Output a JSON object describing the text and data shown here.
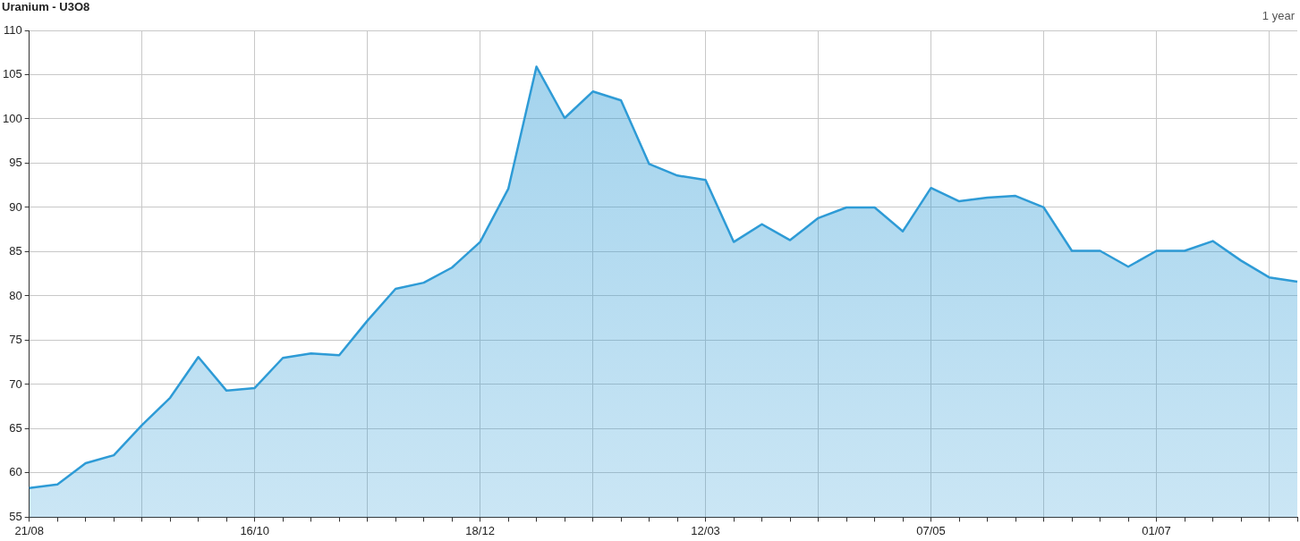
{
  "chart_data": {
    "type": "area",
    "title": "Uranium - U3O8",
    "annotations": [
      "1 year"
    ],
    "categories": [
      "21/08",
      null,
      null,
      null,
      null,
      null,
      null,
      null,
      "16/10",
      null,
      null,
      null,
      null,
      null,
      null,
      null,
      "18/12",
      null,
      null,
      null,
      null,
      null,
      null,
      null,
      "12/03",
      null,
      null,
      null,
      null,
      null,
      null,
      null,
      "07/05",
      null,
      null,
      null,
      null,
      null,
      null,
      null,
      "01/07",
      null,
      null,
      null,
      null,
      null
    ],
    "values": [
      58.3,
      58.7,
      61.1,
      62.0,
      65.4,
      68.5,
      73.1,
      69.3,
      69.6,
      73.0,
      73.5,
      73.3,
      77.2,
      80.8,
      81.5,
      83.2,
      86.1,
      92.1,
      105.9,
      100.1,
      103.1,
      102.1,
      94.9,
      93.6,
      93.1,
      86.1,
      88.1,
      86.3,
      88.8,
      90.0,
      90.0,
      87.3,
      92.2,
      90.7,
      91.1,
      91.3,
      90.0,
      85.1,
      85.1,
      83.3,
      85.1,
      85.1,
      86.2,
      84.0,
      82.1,
      81.6
    ],
    "color": "#2e9bd6",
    "ylim": [
      55,
      110
    ],
    "yticks": [
      55,
      60,
      65,
      70,
      75,
      80,
      85,
      90,
      95,
      100,
      105,
      110
    ],
    "grid": true,
    "legend": false
  }
}
